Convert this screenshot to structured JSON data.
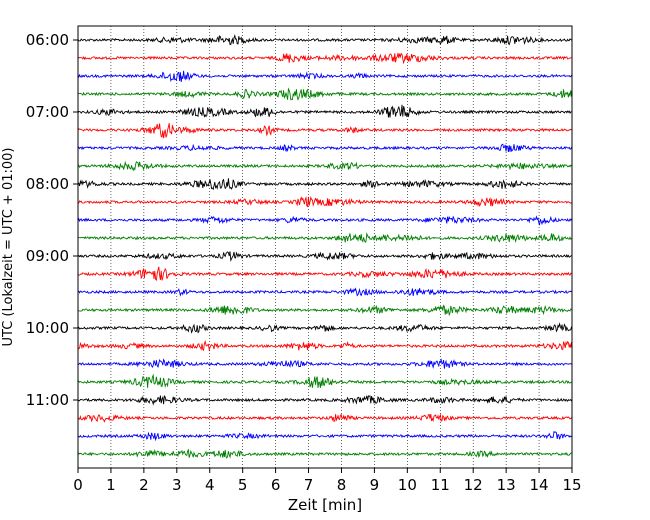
{
  "chart_data": {
    "type": "line",
    "title": "",
    "xlabel": "Zeit  [min]",
    "ylabel": "UTC (Lokalzeit = UTC + 01:00)",
    "xlim": [
      0,
      15
    ],
    "x_ticks": [
      "0",
      "1",
      "2",
      "3",
      "4",
      "5",
      "6",
      "7",
      "8",
      "9",
      "10",
      "11",
      "12",
      "13",
      "14",
      "15"
    ],
    "y_ticks": [
      "06:00",
      "07:00",
      "08:00",
      "09:00",
      "10:00",
      "11:00"
    ],
    "trace_start_times": [
      "06:00",
      "06:15",
      "06:30",
      "06:45",
      "07:00",
      "07:15",
      "07:30",
      "07:45",
      "08:00",
      "08:15",
      "08:30",
      "08:45",
      "09:00",
      "09:15",
      "09:30",
      "09:45",
      "10:00",
      "10:15",
      "10:30",
      "10:45",
      "11:00",
      "11:15",
      "11:30",
      "11:45"
    ],
    "trace_interval_min": 15,
    "trace_colors": [
      "#000000",
      "#ff0000",
      "#0000ff",
      "#008000"
    ],
    "grid": "vertical dotted",
    "legend": "none"
  }
}
